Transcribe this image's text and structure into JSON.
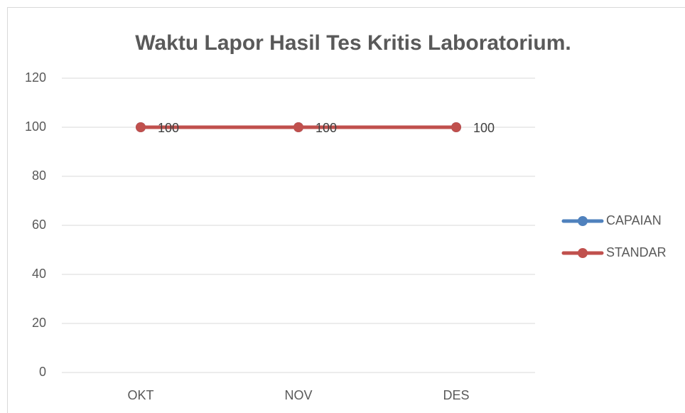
{
  "chart_data": {
    "type": "line",
    "title": "Waktu Lapor Hasil Tes Kritis Laboratorium.",
    "categories": [
      "OKT",
      "NOV",
      "DES"
    ],
    "series": [
      {
        "name": "CAPAIAN",
        "color": "#4f81bd",
        "values": [
          100,
          100,
          100
        ],
        "data_labels": true
      },
      {
        "name": "STANDAR",
        "color": "#c0504d",
        "values": [
          100,
          100,
          100
        ],
        "data_labels": false
      }
    ],
    "ylim": [
      0,
      120
    ],
    "yticks": [
      0,
      20,
      40,
      60,
      80,
      100,
      120
    ],
    "grid": true,
    "legend": "right"
  }
}
